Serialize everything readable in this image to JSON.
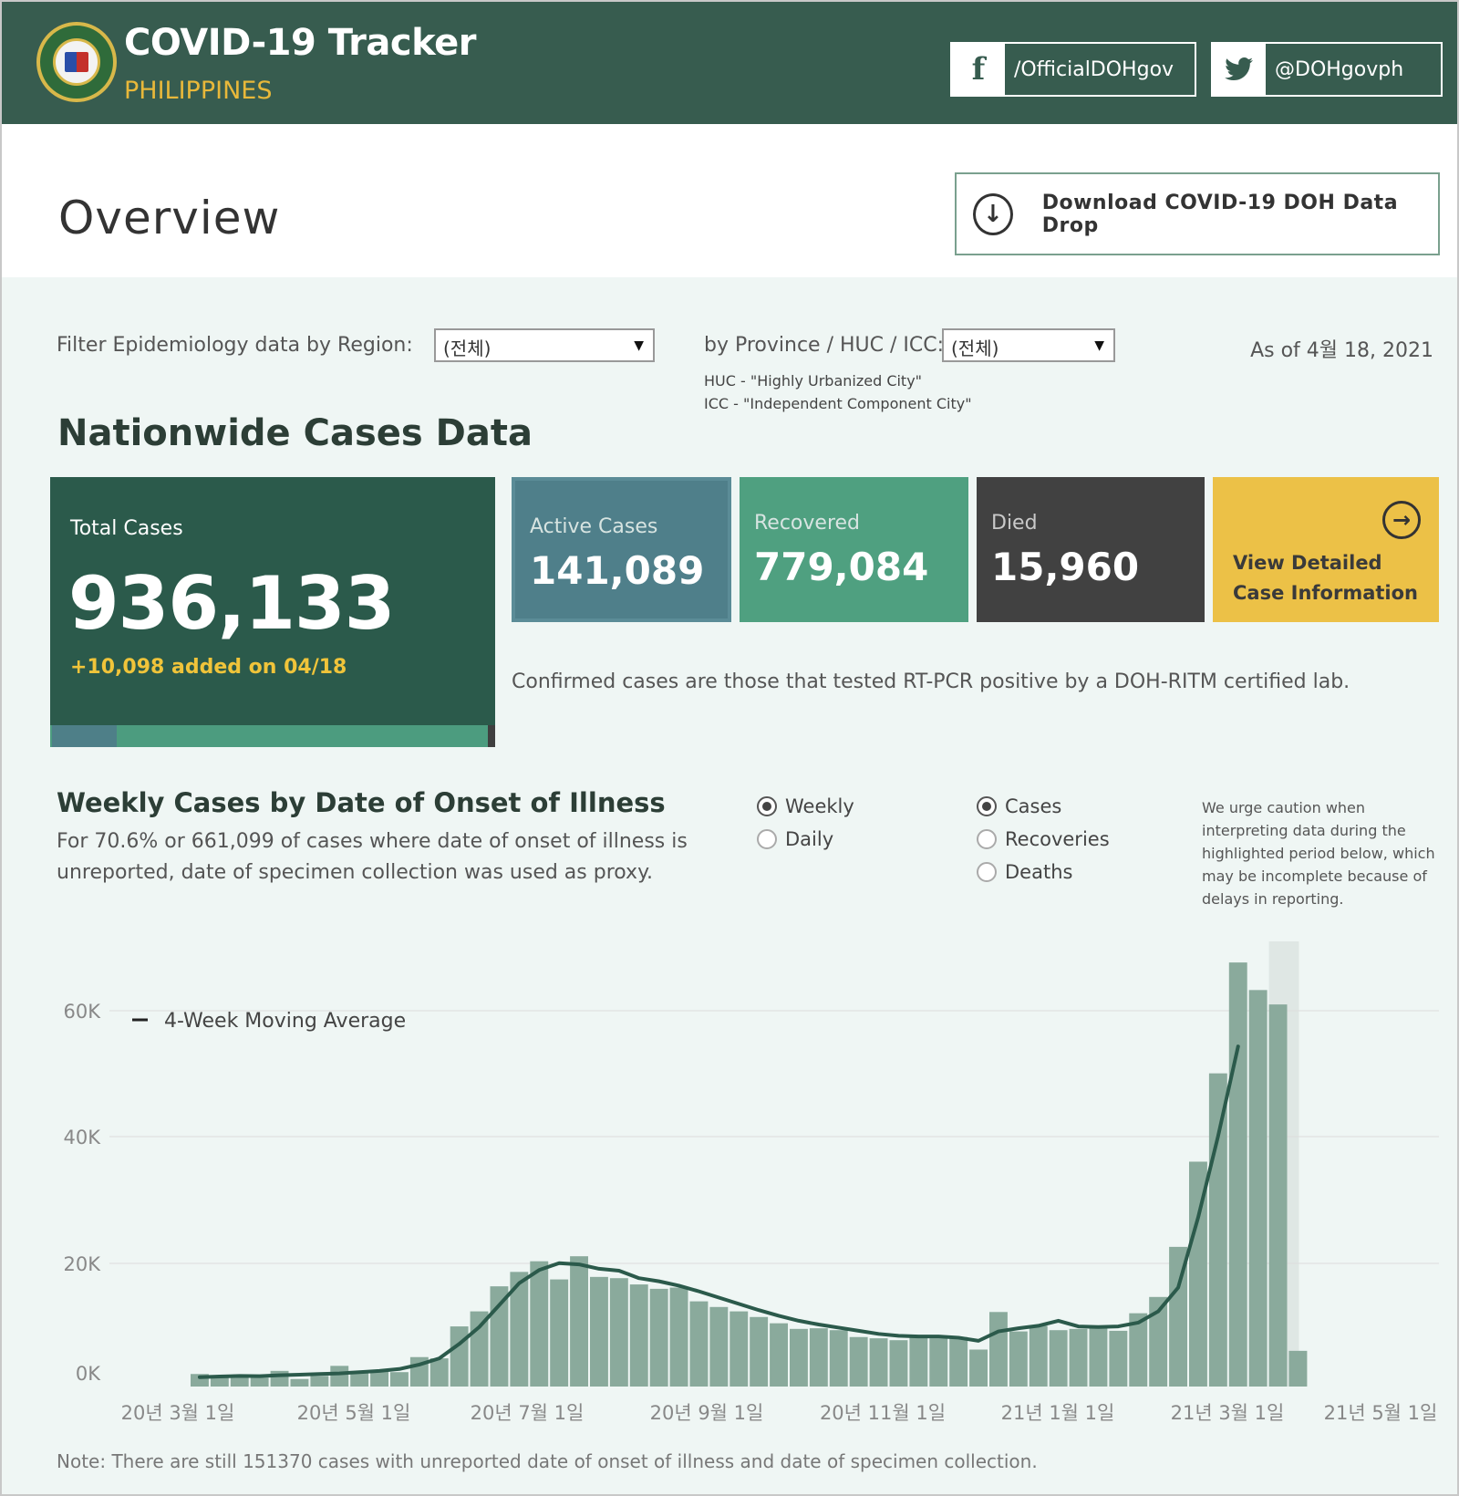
{
  "header": {
    "title": "COVID-19 Tracker",
    "subtitle": "PHILIPPINES",
    "facebook_icon": "f",
    "facebook_label": "/OfficialDOHgov",
    "twitter_label": "@DOHgovph"
  },
  "overview": {
    "title": "Overview",
    "download_label": "Download COVID-19 DOH Data Drop"
  },
  "filters": {
    "region_label": "Filter Epidemiology data by Region:",
    "region_value": "(전체)",
    "province_label": "by Province / HUC / ICC:",
    "province_value": "(전체)",
    "as_of": "As of 4월 18, 2021",
    "huc_note": "HUC - \"Highly Urbanized City\"",
    "icc_note": "ICC - \"Independent Component City\""
  },
  "nationwide": {
    "title": "Nationwide Cases Data",
    "total_label": "Total Cases",
    "total_value": "936,133",
    "total_added": "+10,098 added on 04/18",
    "active_label": "Active Cases",
    "active_value": "141,089",
    "recovered_label": "Recovered",
    "recovered_value": "779,084",
    "died_label": "Died",
    "died_value": "15,960",
    "view_line1": "View Detailed",
    "view_line2": "Case Information",
    "confirmed_note": "Confirmed cases are those that tested RT-PCR positive by a DOH-RITM certified lab."
  },
  "weekly": {
    "title": "Weekly Cases by Date of Onset of Illness",
    "desc": "For 70.6% or 661,099 of cases where date of onset of illness is unreported, date of specimen collection was used as proxy.",
    "radio_weekly": "Weekly",
    "radio_daily": "Daily",
    "radio_cases": "Cases",
    "radio_recoveries": "Recoveries",
    "radio_deaths": "Deaths",
    "caution": "We urge caution when interpreting data during the highlighted period below, which may be incomplete because of delays in reporting."
  },
  "colors": {
    "header_bg": "#375c4f",
    "accent_gold": "#e8b83a",
    "bar": "#8aaa9c",
    "line": "#2b5a4b"
  },
  "chart_data": {
    "type": "bar",
    "legend": [
      "4-Week Moving Average"
    ],
    "y_ticks": [
      "60K",
      "40K",
      "20K",
      "0K"
    ],
    "ylim": [
      0,
      70000
    ],
    "x_ticks": [
      "20년 3월 1일",
      "20년 5월 1일",
      "20년 7월 1일",
      "20년 9월 1일",
      "20년 11월 1일",
      "21년 1월 1일",
      "21년 3월 1일",
      "21년 5월 1일"
    ],
    "series": [
      {
        "values": [
          2000,
          1500,
          1800,
          1400,
          2500,
          1200,
          1700,
          3300,
          2300,
          2500,
          2300,
          4700,
          4500,
          9600,
          12000,
          16000,
          18300,
          20000,
          17100,
          20800,
          17500,
          17300,
          16300,
          15600,
          15800,
          13600,
          12700,
          12000,
          11100,
          10100,
          9200,
          9300,
          9000,
          7900,
          7700,
          7400,
          7900,
          7700,
          7900,
          5900,
          11900,
          8800,
          9700,
          9000,
          9200,
          9600,
          8900,
          11700,
          14300,
          22300,
          35900,
          50000,
          67700,
          63300,
          61000,
          5700
        ]
      },
      {
        "values": [
          1500,
          1600,
          1700,
          1650,
          1800,
          1900,
          2000,
          2100,
          2300,
          2500,
          2800,
          3500,
          4500,
          6800,
          9500,
          13000,
          16500,
          18600,
          19700,
          19500,
          18800,
          18500,
          17300,
          16800,
          16100,
          15200,
          14200,
          13200,
          12200,
          11300,
          10500,
          9900,
          9400,
          8900,
          8400,
          8100,
          8000,
          8000,
          7800,
          7300,
          8800,
          9300,
          9700,
          10500,
          9600,
          9500,
          9600,
          10200,
          12000,
          15800,
          27000,
          40000,
          54300
        ]
      }
    ]
  }
}
